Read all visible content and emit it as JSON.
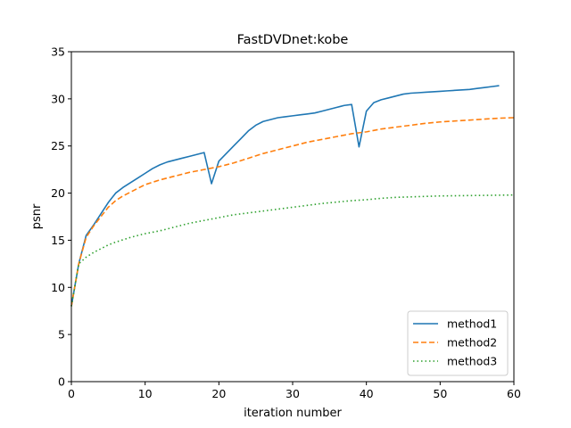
{
  "chart_data": {
    "type": "line",
    "title": "FastDVDnet:kobe",
    "xlabel": "iteration number",
    "ylabel": "psnr",
    "xlim": [
      0,
      60
    ],
    "ylim": [
      0,
      35
    ],
    "xticks": [
      0,
      10,
      20,
      30,
      40,
      50,
      60
    ],
    "yticks": [
      0,
      5,
      10,
      15,
      20,
      25,
      30,
      35
    ],
    "grid": false,
    "legend_position": "lower-right",
    "series": [
      {
        "name": "method1",
        "color": "#1f77b4",
        "style": "solid",
        "x": [
          0,
          1,
          2,
          3,
          4,
          5,
          6,
          7,
          8,
          9,
          10,
          11,
          12,
          13,
          14,
          15,
          16,
          17,
          18,
          19,
          20,
          21,
          22,
          23,
          24,
          25,
          26,
          27,
          28,
          29,
          30,
          31,
          32,
          33,
          34,
          35,
          36,
          37,
          38,
          39,
          40,
          41,
          42,
          43,
          44,
          45,
          46,
          47,
          48,
          49,
          50,
          51,
          52,
          53,
          54,
          55,
          56,
          57,
          58
        ],
        "y": [
          8.0,
          12.5,
          15.5,
          16.6,
          17.8,
          19.0,
          20.0,
          20.6,
          21.1,
          21.6,
          22.1,
          22.6,
          23.0,
          23.3,
          23.5,
          23.7,
          23.9,
          24.1,
          24.3,
          21.0,
          23.4,
          24.2,
          25.0,
          25.8,
          26.6,
          27.2,
          27.6,
          27.8,
          28.0,
          28.1,
          28.2,
          28.3,
          28.4,
          28.5,
          28.7,
          28.9,
          29.1,
          29.3,
          29.4,
          24.9,
          28.7,
          29.6,
          29.9,
          30.1,
          30.3,
          30.5,
          30.6,
          30.65,
          30.7,
          30.75,
          30.8,
          30.85,
          30.9,
          30.95,
          31.0,
          31.1,
          31.2,
          31.3,
          31.4
        ]
      },
      {
        "name": "method2",
        "color": "#ff7f0e",
        "style": "dashed",
        "x": [
          0,
          1,
          2,
          3,
          4,
          5,
          6,
          7,
          8,
          9,
          10,
          12,
          14,
          16,
          18,
          20,
          22,
          24,
          26,
          28,
          30,
          32,
          34,
          36,
          38,
          40,
          42,
          44,
          46,
          48,
          50,
          52,
          54,
          56,
          58,
          60
        ],
        "y": [
          8.0,
          12.5,
          15.3,
          16.5,
          17.5,
          18.5,
          19.2,
          19.7,
          20.1,
          20.5,
          20.9,
          21.4,
          21.8,
          22.2,
          22.5,
          22.8,
          23.2,
          23.7,
          24.2,
          24.6,
          25.0,
          25.4,
          25.7,
          26.0,
          26.3,
          26.5,
          26.8,
          27.0,
          27.2,
          27.4,
          27.55,
          27.65,
          27.75,
          27.85,
          27.95,
          28.0
        ]
      },
      {
        "name": "method3",
        "color": "#2ca02c",
        "style": "dotted",
        "x": [
          0,
          1,
          2,
          3,
          4,
          5,
          6,
          8,
          10,
          12,
          14,
          16,
          18,
          20,
          22,
          24,
          26,
          28,
          30,
          32,
          34,
          36,
          38,
          40,
          42,
          44,
          46,
          48,
          50,
          52,
          54,
          56,
          58,
          60
        ],
        "y": [
          8.0,
          12.5,
          13.2,
          13.7,
          14.1,
          14.5,
          14.8,
          15.3,
          15.7,
          16.0,
          16.4,
          16.8,
          17.1,
          17.4,
          17.7,
          17.9,
          18.1,
          18.3,
          18.5,
          18.7,
          18.9,
          19.05,
          19.2,
          19.3,
          19.45,
          19.55,
          19.6,
          19.65,
          19.7,
          19.72,
          19.74,
          19.76,
          19.78,
          19.8
        ]
      }
    ]
  }
}
